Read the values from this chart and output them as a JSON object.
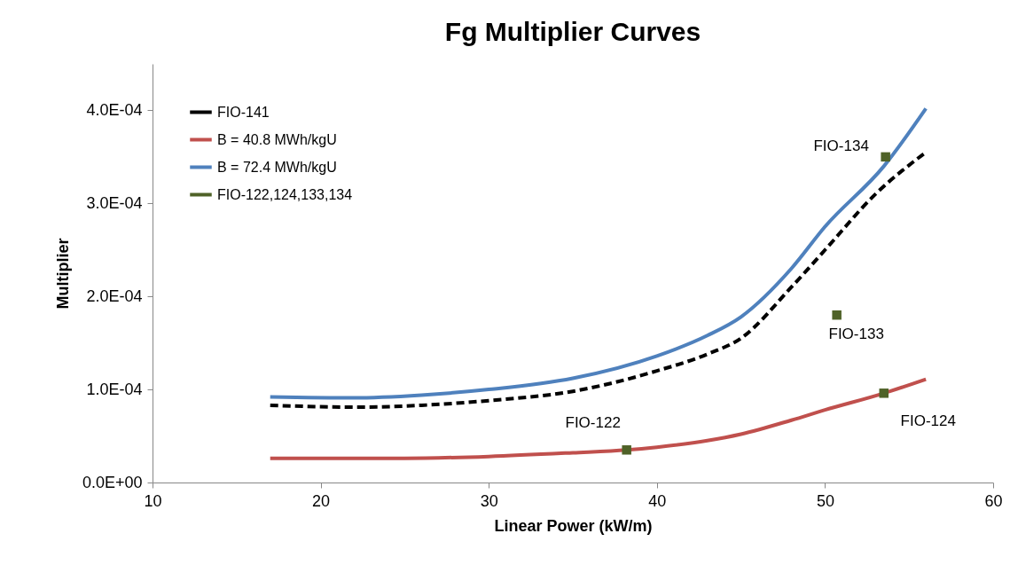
{
  "chart_data": {
    "type": "line",
    "title": "Fg Multiplier Curves",
    "xlabel": "Linear Power (kW/m)",
    "ylabel": "Multiplier",
    "xlim": [
      10,
      60
    ],
    "xticks": [
      10,
      20,
      30,
      40,
      50,
      60
    ],
    "ylim": [
      0,
      0.00045
    ],
    "yticks": [
      {
        "value": 0,
        "label": "0.0E+00"
      },
      {
        "value": 0.0001,
        "label": "1.0E-04"
      },
      {
        "value": 0.0002,
        "label": "2.0E-04"
      },
      {
        "value": 0.0003,
        "label": "3.0E-04"
      },
      {
        "value": 0.0004,
        "label": "4.0E-04"
      }
    ],
    "grid": false,
    "legend": "top left",
    "series": [
      {
        "name": "FIO-141",
        "color": "#000000",
        "line_style": "dashed",
        "x": [
          17,
          22,
          26,
          30,
          35,
          40,
          43,
          45,
          48,
          50,
          53,
          56
        ],
        "values": [
          8.3e-05,
          8.1e-05,
          8.3e-05,
          8.8e-05,
          9.8e-05,
          0.00012,
          0.000138,
          0.000155,
          0.00021,
          0.00025,
          0.00031,
          0.000355
        ]
      },
      {
        "name": "B = 40.8 MWh/kgU",
        "color": "#c0504d",
        "line_style": "solid",
        "x": [
          17,
          25,
          30,
          35,
          38.2,
          40,
          43,
          45,
          48,
          50,
          53.5,
          56
        ],
        "values": [
          2.6e-05,
          2.6e-05,
          2.8e-05,
          3.2e-05,
          3.5e-05,
          3.8e-05,
          4.5e-05,
          5.2e-05,
          6.7e-05,
          7.8e-05,
          9.6e-05,
          0.000111
        ]
      },
      {
        "name": "B = 72.4 MWh/kgU",
        "color": "#4f81bd",
        "line_style": "solid",
        "x": [
          17,
          22,
          26,
          30,
          35,
          40,
          43,
          45,
          48,
          50,
          53.5,
          56
        ],
        "values": [
          9.2e-05,
          9.1e-05,
          9.4e-05,
          0.0001,
          0.000112,
          0.000136,
          0.000158,
          0.000178,
          0.00023,
          0.000275,
          0.00034,
          0.000402
        ]
      },
      {
        "name": "FIO-122,124,133,134",
        "type": "scatter",
        "marker": "square",
        "color": "#4f6228",
        "x": [
          38.2,
          53.5,
          50.7,
          53.6
        ],
        "values": [
          3.5e-05,
          9.6e-05,
          0.00018,
          0.00035
        ]
      }
    ],
    "annotations": [
      {
        "text": "FIO-122",
        "x": 38.2,
        "y": 3.5e-05
      },
      {
        "text": "FIO-124",
        "x": 53.5,
        "y": 9.6e-05
      },
      {
        "text": "FIO-133",
        "x": 50.7,
        "y": 0.00018
      },
      {
        "text": "FIO-134",
        "x": 53.6,
        "y": 0.00035
      }
    ]
  }
}
